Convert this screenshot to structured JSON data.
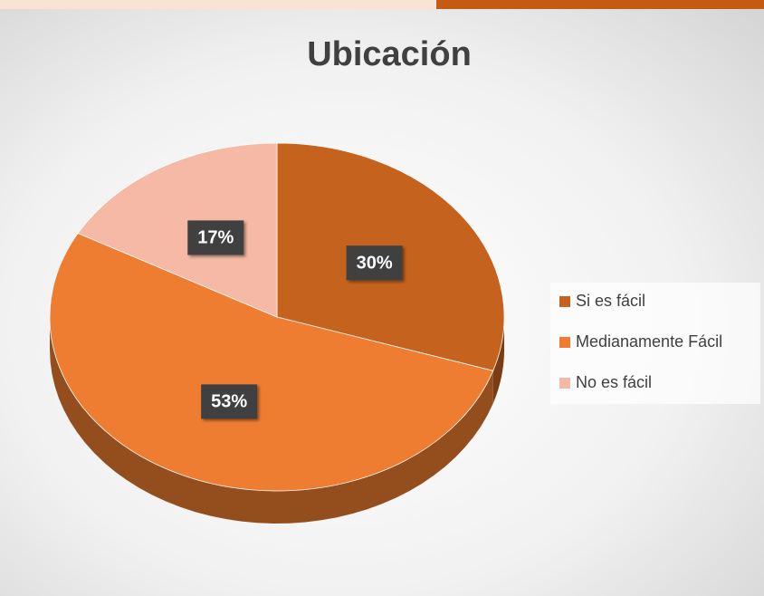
{
  "chart_data": {
    "type": "pie",
    "title": "Ubicación",
    "categories": [
      "Si es fácil",
      "Medianamente Fácil",
      "No es fácil"
    ],
    "values": [
      30,
      53,
      17
    ],
    "value_labels": [
      "30%",
      "53%",
      "17%"
    ],
    "colors": [
      "#c5621e",
      "#ef7d31",
      "#f5b9a5"
    ],
    "legend": "right"
  }
}
